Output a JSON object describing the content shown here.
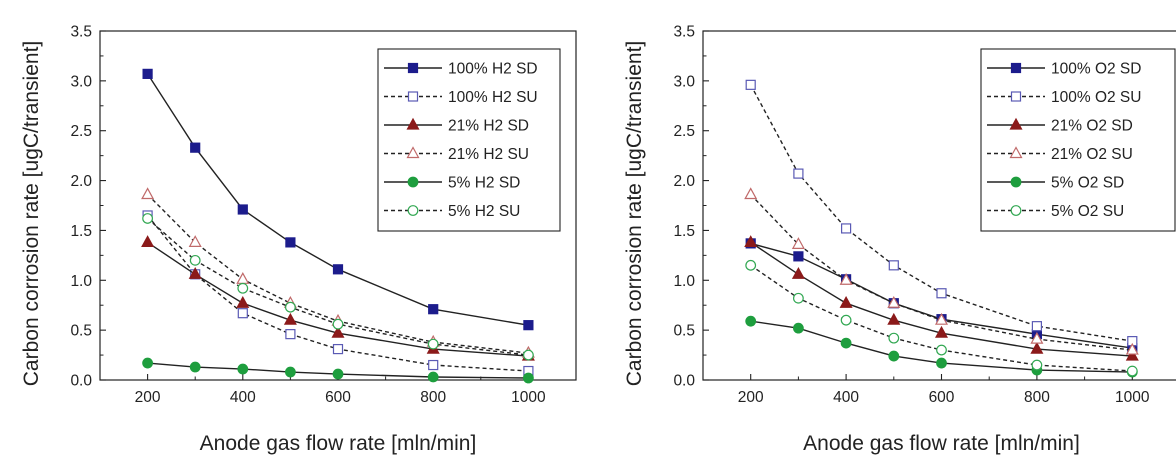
{
  "chart_data": [
    {
      "type": "line",
      "xlabel": "Anode gas flow rate [mln/min]",
      "ylabel": "Carbon corrosion rate [ugC/transient]",
      "xlim": [
        100,
        1100
      ],
      "ylim": [
        0,
        3.5
      ],
      "xticks": [
        200,
        400,
        600,
        800,
        1000
      ],
      "yticks": [
        0.0,
        0.5,
        1.0,
        1.5,
        2.0,
        2.5,
        3.0,
        3.5
      ],
      "ytick_labels": [
        "0.0",
        "0.5",
        "1.0",
        "1.5",
        "2.0",
        "2.5",
        "3.0",
        "3.5"
      ],
      "legend_position": "top-right",
      "grid": false,
      "x": [
        200,
        300,
        400,
        500,
        600,
        800,
        1000
      ],
      "series": [
        {
          "name": "100% H2 SD",
          "values": [
            3.07,
            2.33,
            1.71,
            1.38,
            1.11,
            0.71,
            0.55
          ],
          "color": "#1c1c8c",
          "marker": "square",
          "filled": true,
          "dashed": false
        },
        {
          "name": "100% H2 SU",
          "values": [
            1.65,
            1.06,
            0.67,
            0.46,
            0.31,
            0.15,
            0.09
          ],
          "color": "#5a5ab4",
          "marker": "square",
          "filled": false,
          "dashed": true
        },
        {
          "name": "21% H2 SD",
          "values": [
            1.38,
            1.06,
            0.77,
            0.6,
            0.47,
            0.31,
            0.24
          ],
          "color": "#8b1a1a",
          "marker": "triangle",
          "filled": true,
          "dashed": false
        },
        {
          "name": "21% H2 SU",
          "values": [
            1.86,
            1.38,
            1.01,
            0.77,
            0.59,
            0.38,
            0.27
          ],
          "color": "#c06a6a",
          "marker": "triangle",
          "filled": false,
          "dashed": true
        },
        {
          "name": "5% H2 SD",
          "values": [
            0.17,
            0.13,
            0.11,
            0.08,
            0.06,
            0.03,
            0.02
          ],
          "color": "#1e9e3e",
          "marker": "circle",
          "filled": true,
          "dashed": false
        },
        {
          "name": "5% H2 SU",
          "values": [
            1.62,
            1.2,
            0.92,
            0.73,
            0.56,
            0.36,
            0.25
          ],
          "color": "#33a853",
          "marker": "circle",
          "filled": false,
          "dashed": true
        }
      ]
    },
    {
      "type": "line",
      "xlabel": "Anode gas flow rate [mln/min]",
      "ylabel": "Carbon corrosion rate [ugC/transient]",
      "xlim": [
        100,
        1100
      ],
      "ylim": [
        0,
        3.5
      ],
      "xticks": [
        200,
        400,
        600,
        800,
        1000
      ],
      "yticks": [
        0.0,
        0.5,
        1.0,
        1.5,
        2.0,
        2.5,
        3.0,
        3.5
      ],
      "ytick_labels": [
        "0.0",
        "0.5",
        "1.0",
        "1.5",
        "2.0",
        "2.5",
        "3.0",
        "3.5"
      ],
      "legend_position": "top-right",
      "grid": false,
      "x": [
        200,
        300,
        400,
        500,
        600,
        800,
        1000
      ],
      "series": [
        {
          "name": "100% O2 SD",
          "values": [
            1.37,
            1.24,
            1.01,
            0.77,
            0.61,
            0.46,
            0.32
          ],
          "color": "#1c1c8c",
          "marker": "square",
          "filled": true,
          "dashed": false
        },
        {
          "name": "100% O2 SU",
          "values": [
            2.96,
            2.07,
            1.52,
            1.15,
            0.87,
            0.54,
            0.39
          ],
          "color": "#5a5ab4",
          "marker": "square",
          "filled": false,
          "dashed": true
        },
        {
          "name": "21% O2 SD",
          "values": [
            1.38,
            1.06,
            0.77,
            0.6,
            0.47,
            0.31,
            0.24
          ],
          "color": "#8b1a1a",
          "marker": "triangle",
          "filled": true,
          "dashed": false
        },
        {
          "name": "21% O2 SU",
          "values": [
            1.86,
            1.36,
            1.0,
            0.77,
            0.6,
            0.41,
            0.3
          ],
          "color": "#c06a6a",
          "marker": "triangle",
          "filled": false,
          "dashed": true
        },
        {
          "name": "5% O2 SD",
          "values": [
            0.59,
            0.52,
            0.37,
            0.24,
            0.17,
            0.1,
            0.08
          ],
          "color": "#1e9e3e",
          "marker": "circle",
          "filled": true,
          "dashed": false
        },
        {
          "name": "5% O2 SU",
          "values": [
            1.15,
            0.82,
            0.6,
            0.42,
            0.3,
            0.15,
            0.09
          ],
          "color": "#33a853",
          "marker": "circle",
          "filled": false,
          "dashed": true
        }
      ]
    }
  ]
}
